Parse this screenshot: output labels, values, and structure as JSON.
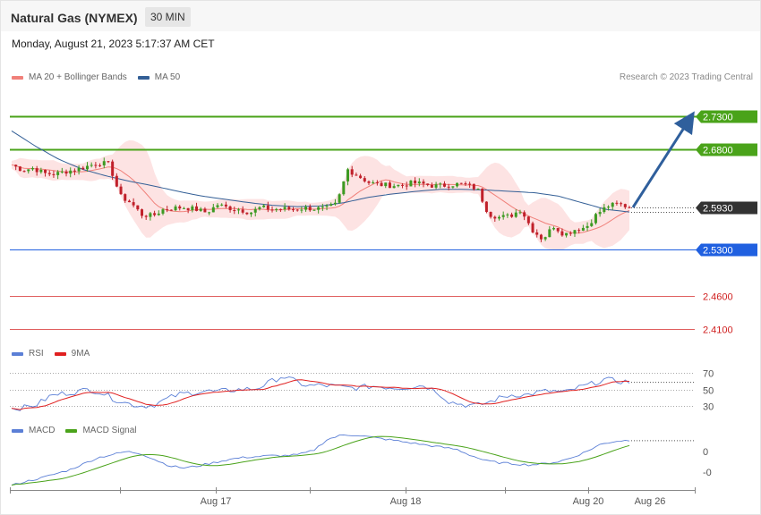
{
  "header": {
    "title": "Natural Gas (NYMEX)",
    "timeframe": "30 MIN",
    "datetime": "Monday, August 21, 2023 5:17:37 AM CET"
  },
  "legend_price": [
    {
      "label": "MA 20 + Bollinger Bands",
      "color": "#f0807a"
    },
    {
      "label": "MA 50",
      "color": "#335f96"
    }
  ],
  "legend_rsi": [
    {
      "label": "RSI",
      "color": "#5b7fd6"
    },
    {
      "label": "9MA",
      "color": "#e02020"
    }
  ],
  "legend_macd": [
    {
      "label": "MACD",
      "color": "#5b7fd6"
    },
    {
      "label": "MACD Signal",
      "color": "#4aa31a"
    }
  ],
  "credit": "Research © 2023 Trading Central",
  "colors": {
    "up": "#3c9a22",
    "down": "#c0202a",
    "resistance": "#4aa31a",
    "support_current": "#2060e0",
    "support_red": "#e06060",
    "band": "#fde3e3",
    "arrow": "#2f5f9c"
  },
  "chart_data": [
    {
      "type": "candlestick",
      "title": "Natural Gas (NYMEX) 30 MIN",
      "x_ticks": [
        "Aug 17",
        "Aug 18",
        "Aug 20",
        "Aug 26"
      ],
      "ylim": [
        2.395,
        2.745
      ],
      "last_price": 2.593,
      "levels": [
        {
          "value": 2.73,
          "label": "2.7300",
          "kind": "resistance"
        },
        {
          "value": 2.68,
          "label": "2.6800",
          "kind": "resistance"
        },
        {
          "value": 2.593,
          "label": "2.5930",
          "kind": "current"
        },
        {
          "value": 2.53,
          "label": "2.5300",
          "kind": "support"
        },
        {
          "value": 2.46,
          "label": "2.4600",
          "kind": "support"
        },
        {
          "value": 2.41,
          "label": "2.4100",
          "kind": "support"
        }
      ],
      "forecast_arrow": {
        "from": 2.593,
        "to": 2.73
      },
      "price_control_points": [
        2.657,
        2.649,
        2.652,
        2.644,
        2.643,
        2.647,
        2.65,
        2.655,
        2.66,
        2.658,
        2.61,
        2.6,
        2.582,
        2.58,
        2.59,
        2.592,
        2.593,
        2.59,
        2.585,
        2.597,
        2.592,
        2.59,
        2.585,
        2.593,
        2.59,
        2.591,
        2.59,
        2.592,
        2.591,
        2.591,
        2.598,
        2.65,
        2.64,
        2.63,
        2.627,
        2.626,
        2.626,
        2.63,
        2.628,
        2.625,
        2.626,
        2.628,
        2.627,
        2.62,
        2.583,
        2.578,
        2.58,
        2.59,
        2.56,
        2.545,
        2.565,
        2.552,
        2.56,
        2.563,
        2.583,
        2.595,
        2.598,
        2.593
      ],
      "ma50_control_points": [
        2.708,
        2.685,
        2.665,
        2.65,
        2.64,
        2.632,
        2.625,
        2.617,
        2.61,
        2.605,
        2.6,
        2.596,
        2.594,
        2.595,
        2.6,
        2.608,
        2.613,
        2.617,
        2.62,
        2.62,
        2.619,
        2.617,
        2.615,
        2.61,
        2.6,
        2.59,
        2.586
      ],
      "series": [
        {
          "name": "MA 20 + Bollinger Bands"
        },
        {
          "name": "MA 50"
        }
      ]
    },
    {
      "type": "line",
      "title": "RSI",
      "y_ticks": [
        "70",
        "50",
        "30"
      ],
      "ylim": [
        20,
        80
      ],
      "levels": [
        70,
        50,
        30
      ],
      "rsi_control_points": [
        27,
        28,
        32,
        42,
        45,
        47,
        50,
        46,
        38,
        33,
        30,
        31,
        38,
        44,
        46,
        48,
        47,
        49,
        50,
        51,
        58,
        66,
        60,
        54,
        55,
        54,
        52,
        52,
        54,
        53,
        52,
        53,
        55,
        48,
        35,
        32,
        30,
        34,
        40,
        44,
        43,
        47,
        48,
        46,
        52,
        56,
        62,
        60,
        59
      ],
      "series": [
        {
          "name": "RSI"
        },
        {
          "name": "9MA"
        }
      ]
    },
    {
      "type": "line",
      "title": "MACD",
      "y_ticks": [
        "0",
        "-0"
      ],
      "ylim": [
        -0.035,
        0.035
      ],
      "macd_control_points": [
        -0.033,
        -0.029,
        -0.026,
        -0.022,
        -0.018,
        -0.012,
        -0.006,
        -0.003,
        0.0,
        -0.002,
        -0.008,
        -0.014,
        -0.016,
        -0.014,
        -0.011,
        -0.008,
        -0.006,
        -0.005,
        -0.004,
        -0.004,
        -0.003,
        0.001,
        0.012,
        0.016,
        0.016,
        0.014,
        0.012,
        0.01,
        0.008,
        0.006,
        0.004,
        0.002,
        -0.004,
        -0.009,
        -0.011,
        -0.012,
        -0.013,
        -0.012,
        -0.01,
        -0.006,
        0.0,
        0.007,
        0.01,
        0.011
      ],
      "series": [
        {
          "name": "MACD"
        },
        {
          "name": "MACD Signal"
        }
      ]
    }
  ]
}
